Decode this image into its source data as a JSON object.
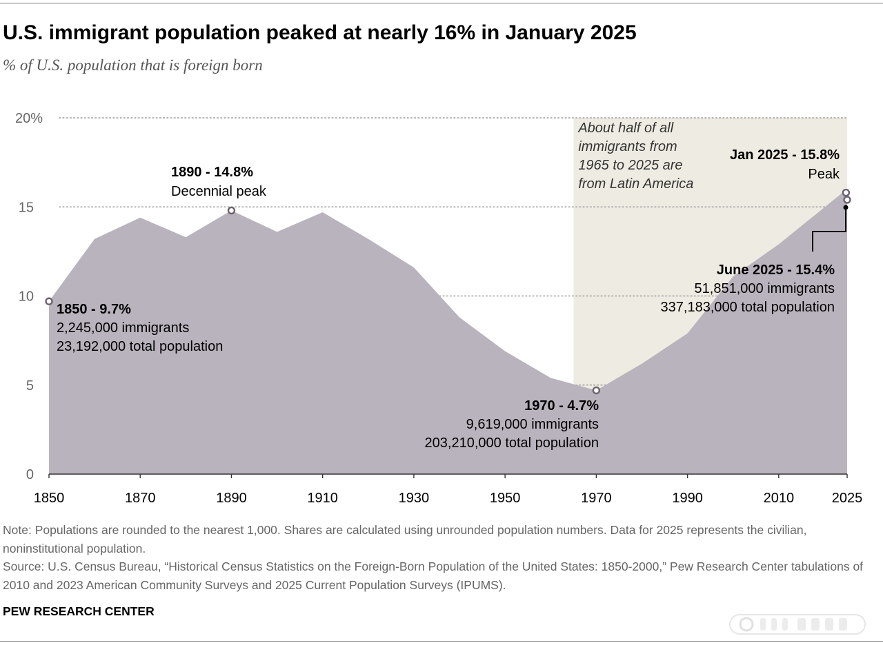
{
  "chart_data": {
    "type": "area",
    "title": "U.S. immigrant population peaked at nearly 16% in January 2025",
    "subtitle": "% of U.S. population that is foreign born",
    "x": [
      1850,
      1860,
      1870,
      1880,
      1890,
      1900,
      1910,
      1920,
      1930,
      1940,
      1950,
      1960,
      1970,
      1980,
      1990,
      2000,
      2010,
      2024,
      2025
    ],
    "values": [
      9.7,
      13.2,
      14.4,
      13.3,
      14.8,
      13.6,
      14.7,
      13.2,
      11.6,
      8.8,
      6.9,
      5.4,
      4.7,
      6.2,
      7.9,
      11.1,
      12.9,
      15.8,
      15.4
    ],
    "xlim": [
      1850,
      2025
    ],
    "ylim": [
      0,
      20
    ],
    "xticks": [
      "1850",
      "1870",
      "1890",
      "1910",
      "1930",
      "1950",
      "1970",
      "1990",
      "2010",
      "2025"
    ],
    "yticks": [
      "0",
      "5",
      "10",
      "15",
      "20%"
    ],
    "grid": true,
    "highlight_region": {
      "x_start": 1965,
      "x_end": 2025,
      "text": [
        "About half of all",
        "immigrants from",
        "1965 to 2025 are",
        "from Latin America"
      ]
    },
    "annotations": [
      {
        "year": 1850,
        "value": 9.7,
        "marker": "open",
        "lines": [
          "1850 - 9.7%",
          "2,245,000 immigrants",
          "23,192,000 total population"
        ]
      },
      {
        "year": 1890,
        "value": 14.8,
        "marker": "open",
        "lines": [
          "1890 - 14.8%",
          "Decennial peak"
        ]
      },
      {
        "year": 1970,
        "value": 4.7,
        "marker": "open",
        "lines": [
          "1970 - 4.7%",
          "9,619,000 immigrants",
          "203,210,000 total population"
        ]
      },
      {
        "year": 2024.75,
        "value": 15.8,
        "marker": "open",
        "lines": [
          "Jan 2025 - 15.8%",
          "Peak"
        ]
      },
      {
        "year": 2025,
        "value": 15.4,
        "marker": "open",
        "lines": [
          "June 2025 - 15.4%",
          "51,851,000 immigrants",
          "337,183,000 total population"
        ]
      }
    ],
    "colors": {
      "area": "#b9b3bd",
      "highlight": "#eeece2",
      "marker": "#6d6370",
      "grid": "#9a9a9a"
    }
  },
  "footer": {
    "note": "Note: Populations are rounded to the nearest 1,000. Shares are calculated using unrounded population numbers. Data for 2025 represents the civilian, noninstitutional population.",
    "source": "Source: U.S. Census Bureau, “Historical Census Statistics on the Foreign-Born Population of the United States: 1850-2000,” Pew Research Center tabulations of 2010 and 2023 American Community Surveys and 2025 Current Population Surveys (IPUMS).",
    "brand": "PEW RESEARCH CENTER"
  }
}
